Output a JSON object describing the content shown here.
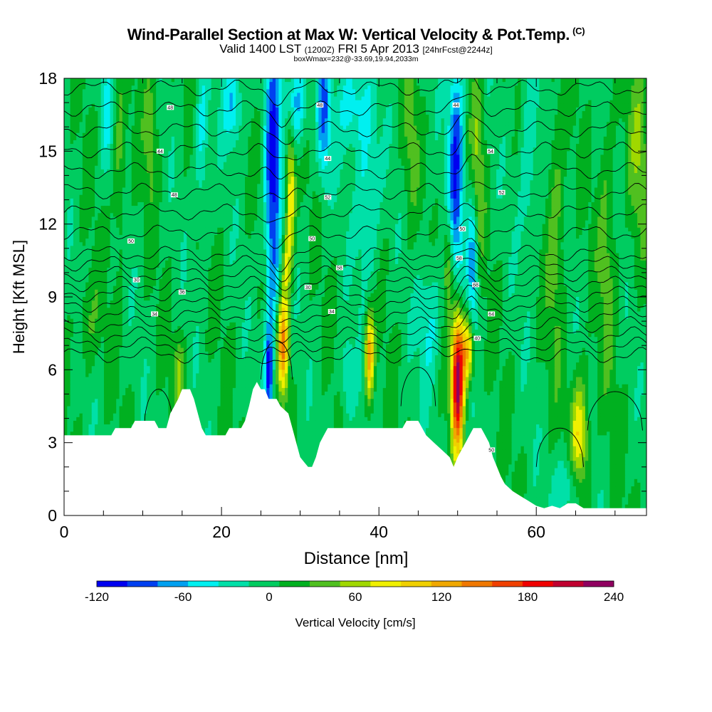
{
  "header": {
    "title": "Wind-Parallel Section at Max W: Vertical Velocity & Pot.Temp.",
    "copyright": "(C)",
    "valid_prefix": "Valid 1400 LST",
    "valid_z": "(1200Z)",
    "valid_date": "FRI 5 Apr 2013",
    "forecast": "[24hrFcst@2244z]",
    "boxline": "boxWmax=232@-33.69,19.94,2033m"
  },
  "chart_data": {
    "type": "heatmap",
    "xlabel": "Distance [nm]",
    "ylabel": "Height [Kft MSL]",
    "xlim": [
      0,
      74
    ],
    "ylim": [
      0,
      18
    ],
    "x_ticks": [
      "0",
      "20",
      "40",
      "60"
    ],
    "x_tick_values": [
      0,
      20,
      40,
      60
    ],
    "y_ticks": [
      "0",
      "3",
      "6",
      "9",
      "12",
      "15",
      "18"
    ],
    "y_tick_values": [
      0,
      3,
      6,
      9,
      12,
      15,
      18
    ],
    "colorbar": {
      "label": "Vertical Velocity [cm/s]",
      "min": -120,
      "max": 240,
      "tick_labels": [
        "-120",
        "-60",
        "0",
        "60",
        "120",
        "180",
        "240"
      ],
      "tick_values": [
        -120,
        -60,
        0,
        60,
        120,
        180,
        240
      ],
      "colors": [
        "#0000f0",
        "#0040f0",
        "#00a0f0",
        "#00f0f0",
        "#00e0a8",
        "#00cc60",
        "#00b020",
        "#50c020",
        "#a0d800",
        "#f0f000",
        "#f0d000",
        "#f0a800",
        "#f07800",
        "#f04000",
        "#f00000",
        "#c00030",
        "#900060"
      ]
    },
    "terrain_kft": [
      [
        0,
        3.3
      ],
      [
        6,
        3.3
      ],
      [
        6.5,
        3.6
      ],
      [
        8.5,
        3.6
      ],
      [
        9,
        3.9
      ],
      [
        11.5,
        3.9
      ],
      [
        12,
        3.6
      ],
      [
        13,
        3.6
      ],
      [
        13.5,
        4.2
      ],
      [
        14,
        4.5
      ],
      [
        14.5,
        4.8
      ],
      [
        15,
        5.2
      ],
      [
        16,
        5.2
      ],
      [
        16.5,
        4.8
      ],
      [
        17,
        4.2
      ],
      [
        17.5,
        3.6
      ],
      [
        18,
        3.3
      ],
      [
        20.5,
        3.3
      ],
      [
        21,
        3.6
      ],
      [
        22.5,
        3.6
      ],
      [
        23,
        3.9
      ],
      [
        23.5,
        4.5
      ],
      [
        24,
        5.2
      ],
      [
        24.5,
        5.5
      ],
      [
        25,
        5.2
      ],
      [
        25.5,
        5.2
      ],
      [
        26,
        4.8
      ],
      [
        27,
        4.8
      ],
      [
        27.5,
        4.5
      ],
      [
        28.5,
        4.2
      ],
      [
        29,
        3.6
      ],
      [
        29.5,
        3.0
      ],
      [
        30,
        2.4
      ],
      [
        30.5,
        2.2
      ],
      [
        31,
        2.0
      ],
      [
        31.5,
        2.0
      ],
      [
        32,
        2.4
      ],
      [
        32.5,
        3.0
      ],
      [
        33,
        3.3
      ],
      [
        33.5,
        3.6
      ],
      [
        43,
        3.6
      ],
      [
        43.5,
        3.9
      ],
      [
        45,
        3.9
      ],
      [
        45.5,
        3.6
      ],
      [
        46,
        3.3
      ],
      [
        47,
        3.0
      ],
      [
        48,
        2.7
      ],
      [
        49,
        2.4
      ],
      [
        49.5,
        2.0
      ],
      [
        50,
        2.4
      ],
      [
        51,
        3.0
      ],
      [
        52,
        3.6
      ],
      [
        53,
        3.6
      ],
      [
        53.5,
        3.3
      ],
      [
        54,
        3.0
      ],
      [
        54.5,
        2.4
      ],
      [
        55,
        2.0
      ],
      [
        55.5,
        1.6
      ],
      [
        56,
        1.3
      ],
      [
        57,
        1.0
      ],
      [
        58,
        0.8
      ],
      [
        59,
        0.6
      ],
      [
        60,
        0.4
      ],
      [
        61,
        0.3
      ],
      [
        62,
        0.4
      ],
      [
        63,
        0.3
      ],
      [
        64,
        0.5
      ],
      [
        65,
        0.5
      ],
      [
        66,
        0.3
      ],
      [
        74,
        0.3
      ]
    ],
    "isentrope_labels": [
      {
        "x": 13.5,
        "y": 16.8,
        "text": "48"
      },
      {
        "x": 12.2,
        "y": 15.0,
        "text": "44"
      },
      {
        "x": 14.0,
        "y": 13.2,
        "text": "48"
      },
      {
        "x": 8.5,
        "y": 11.3,
        "text": "50"
      },
      {
        "x": 9.2,
        "y": 9.7,
        "text": "30"
      },
      {
        "x": 15.0,
        "y": 9.2,
        "text": "36"
      },
      {
        "x": 11.5,
        "y": 8.3,
        "text": "34"
      },
      {
        "x": 32.5,
        "y": 16.9,
        "text": "48"
      },
      {
        "x": 33.5,
        "y": 14.7,
        "text": "44"
      },
      {
        "x": 33.5,
        "y": 13.1,
        "text": "52"
      },
      {
        "x": 31.5,
        "y": 11.4,
        "text": "50"
      },
      {
        "x": 35.0,
        "y": 10.2,
        "text": "58"
      },
      {
        "x": 31.0,
        "y": 9.4,
        "text": "30"
      },
      {
        "x": 34.0,
        "y": 8.4,
        "text": "34"
      },
      {
        "x": 49.8,
        "y": 16.9,
        "text": "44"
      },
      {
        "x": 54.2,
        "y": 15.0,
        "text": "54"
      },
      {
        "x": 55.6,
        "y": 13.3,
        "text": "52"
      },
      {
        "x": 50.6,
        "y": 11.8,
        "text": "50"
      },
      {
        "x": 50.2,
        "y": 10.6,
        "text": "58"
      },
      {
        "x": 52.3,
        "y": 9.5,
        "text": "68"
      },
      {
        "x": 54.3,
        "y": 8.3,
        "text": "64"
      },
      {
        "x": 52.5,
        "y": 7.3,
        "text": "40"
      },
      {
        "x": 54.3,
        "y": 2.7,
        "text": "50"
      }
    ],
    "features": [
      {
        "x": 26.5,
        "y": 13.5,
        "w": -110,
        "sx": 0.7,
        "sy": 4.5
      },
      {
        "x": 33.0,
        "y": 16.5,
        "w": -80,
        "sx": 0.6,
        "sy": 2.0
      },
      {
        "x": 49.8,
        "y": 14.5,
        "w": -100,
        "sx": 0.7,
        "sy": 3.5
      },
      {
        "x": 52.0,
        "y": 10.5,
        "w": -90,
        "sx": 0.5,
        "sy": 2.2
      },
      {
        "x": 26.0,
        "y": 5.8,
        "w": -100,
        "sx": 0.35,
        "sy": 1.3
      },
      {
        "x": 29.5,
        "y": 17.0,
        "w": -70,
        "sx": 1.0,
        "sy": 1.3
      },
      {
        "x": 21.5,
        "y": 17.0,
        "w": -60,
        "sx": 0.9,
        "sy": 1.2
      },
      {
        "x": 36.5,
        "y": 17.0,
        "w": -55,
        "sx": 1.2,
        "sy": 1.3
      },
      {
        "x": 38.5,
        "y": 13.5,
        "w": -50,
        "sx": 1.0,
        "sy": 3.0
      },
      {
        "x": 27.8,
        "y": 7.0,
        "w": 140,
        "sx": 0.5,
        "sy": 1.4
      },
      {
        "x": 28.8,
        "y": 13.5,
        "w": 95,
        "sx": 0.4,
        "sy": 2.0
      },
      {
        "x": 28.2,
        "y": 10.5,
        "w": 65,
        "sx": 0.45,
        "sy": 1.2
      },
      {
        "x": 38.8,
        "y": 6.6,
        "w": 130,
        "sx": 0.4,
        "sy": 1.3
      },
      {
        "x": 50.0,
        "y": 5.6,
        "w": 230,
        "sx": 0.55,
        "sy": 2.0
      },
      {
        "x": 51.3,
        "y": 6.8,
        "w": 110,
        "sx": 0.6,
        "sy": 1.0
      },
      {
        "x": 48.8,
        "y": 10.5,
        "w": 55,
        "sx": 0.45,
        "sy": 1.5
      },
      {
        "x": 65.5,
        "y": 3.2,
        "w": 95,
        "sx": 0.8,
        "sy": 1.7
      },
      {
        "x": 52.5,
        "y": 14.0,
        "w": 55,
        "sx": 0.6,
        "sy": 3.0
      },
      {
        "x": 14.6,
        "y": 5.8,
        "w": 45,
        "sx": 0.5,
        "sy": 1.2
      },
      {
        "x": 7.0,
        "y": 14.5,
        "w": 40,
        "sx": 0.6,
        "sy": 2.5
      },
      {
        "x": 11.0,
        "y": 16.0,
        "w": 40,
        "sx": 0.6,
        "sy": 2.0
      },
      {
        "x": 62.5,
        "y": 12.0,
        "w": 40,
        "sx": 0.8,
        "sy": 4.0
      },
      {
        "x": 69.0,
        "y": 11.0,
        "w": 35,
        "sx": 0.8,
        "sy": 4.0
      },
      {
        "x": 73.0,
        "y": 15.0,
        "w": 40,
        "sx": 1.0,
        "sy": 3.0
      },
      {
        "x": 44.0,
        "y": 15.5,
        "w": 30,
        "sx": 0.7,
        "sy": 2.5
      },
      {
        "x": 17.5,
        "y": 15.5,
        "w": -45,
        "sx": 0.6,
        "sy": 2.5
      },
      {
        "x": 5.5,
        "y": 16.5,
        "w": -35,
        "sx": 0.6,
        "sy": 1.8
      },
      {
        "x": 46.5,
        "y": 8.0,
        "w": -45,
        "sx": 1.0,
        "sy": 2.0
      },
      {
        "x": 64.0,
        "y": 1.2,
        "w": -50,
        "sx": 1.2,
        "sy": 1.0
      },
      {
        "x": 36.0,
        "y": 5.5,
        "w": -40,
        "sx": 0.6,
        "sy": 1.3
      },
      {
        "x": 59.0,
        "y": 15.0,
        "w": -40,
        "sx": 0.8,
        "sy": 3.0
      },
      {
        "x": 3.0,
        "y": 8.0,
        "w": 30,
        "sx": 1.0,
        "sy": 1.5
      }
    ]
  }
}
